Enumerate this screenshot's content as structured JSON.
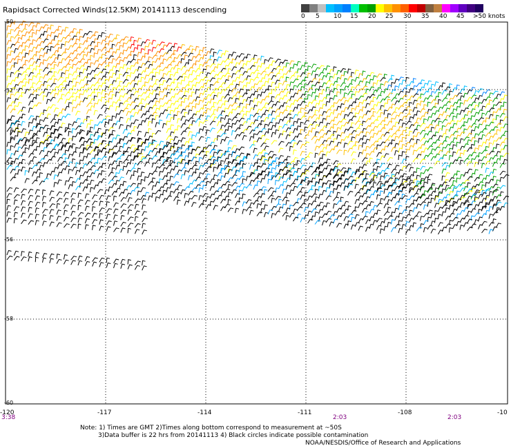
{
  "title": "Rapidsact Corrected Winds(12.5KM) 20141113 descending",
  "legend": {
    "colors": [
      "#404040",
      "#808080",
      "#c0c0c0",
      "#00c0ff",
      "#00a0ff",
      "#0080ff",
      "#00ffc0",
      "#00c000",
      "#00a000",
      "#ffff00",
      "#ffc000",
      "#ff9000",
      "#ff6000",
      "#ff0000",
      "#c00000",
      "#806040",
      "#c08040",
      "#ff00ff",
      "#a000ff",
      "#6000c0",
      "#400080",
      "#200060"
    ],
    "labels": [
      "0",
      "5",
      "10",
      "15",
      "20",
      "25",
      "30",
      "35",
      "40",
      "45",
      ">50 knots"
    ]
  },
  "map": {
    "lat_labels": [
      "-50",
      "-52",
      "-54",
      "-56",
      "-58",
      "-60"
    ],
    "lon_labels": [
      "-120",
      "-117",
      "-114",
      "-111",
      "-108",
      "-10"
    ],
    "time_labels": [
      "3:38",
      "2:03",
      "2:03"
    ]
  },
  "notes": {
    "line1": "Note: 1) Times are GMT 2)Times along bottom correspond to measurement at ~50S",
    "line2": "3)Data buffer is 22 hrs from 20141113 4) Black circles indicate possible contamination",
    "credit": "NOAA/NESDIS/Office of Research and Applications"
  },
  "wind_field": {
    "units": "knots",
    "swaths": [
      {
        "name": "swath-upper",
        "speed_range": [
          0,
          40
        ]
      },
      {
        "name": "swath-lower",
        "speed_range": [
          0,
          20
        ]
      }
    ]
  }
}
